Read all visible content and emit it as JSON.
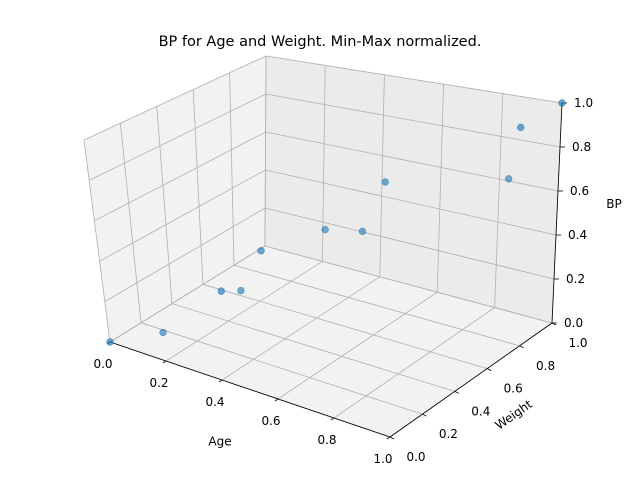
{
  "chart_data": {
    "type": "scatter",
    "projection": "3d",
    "title": "BP for Age and Weight. Min-Max normalized.",
    "xlabel": "Age",
    "ylabel": "Weight",
    "zlabel": "BP",
    "xlim": [
      0,
      1
    ],
    "ylim": [
      0,
      1
    ],
    "zlim": [
      0,
      1
    ],
    "x_ticks": [
      "0.0",
      "0.2",
      "0.4",
      "0.6",
      "0.8",
      "1.0"
    ],
    "y_ticks": [
      "0.0",
      "0.2",
      "0.4",
      "0.6",
      "0.8",
      "1.0"
    ],
    "z_ticks": [
      "0.0",
      "0.2",
      "0.4",
      "0.6",
      "0.8",
      "1.0"
    ],
    "grid": true,
    "marker_color": "#1f77b4",
    "points": [
      {
        "x": 0.0,
        "y": 0.0,
        "z": 0.0
      },
      {
        "x": 0.2,
        "y": 0.0,
        "z": 0.14
      },
      {
        "x": 0.3,
        "y": 0.2,
        "z": 0.29
      },
      {
        "x": 0.4,
        "y": 0.15,
        "z": 0.36
      },
      {
        "x": 0.4,
        "y": 0.28,
        "z": 0.49
      },
      {
        "x": 0.6,
        "y": 0.32,
        "z": 0.65
      },
      {
        "x": 0.68,
        "y": 0.4,
        "z": 0.63
      },
      {
        "x": 0.7,
        "y": 0.5,
        "z": 0.82
      },
      {
        "x": 1.0,
        "y": 0.7,
        "z": 0.82
      },
      {
        "x": 0.95,
        "y": 0.85,
        "z": 0.96
      },
      {
        "x": 1.0,
        "y": 1.0,
        "z": 1.0
      }
    ]
  }
}
